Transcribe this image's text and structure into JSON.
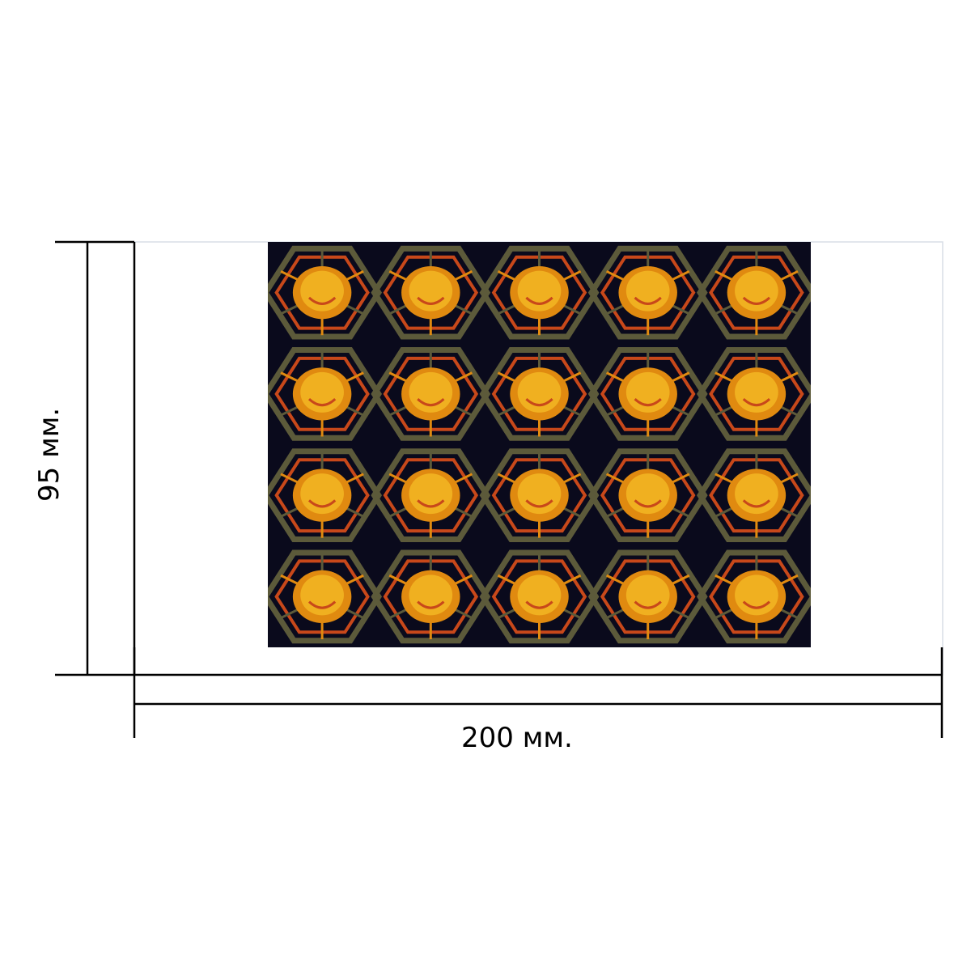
{
  "dimensions": {
    "width_label": "200 мм.",
    "height_label": "95 мм."
  },
  "pattern": {
    "background": "#0a0a1c",
    "colors": {
      "gold": "#f0b020",
      "amber": "#e08a10",
      "rust": "#c8481a",
      "olive": "#5c5a3a"
    },
    "rows": 4,
    "cols": 5
  },
  "line_color": "#000000"
}
